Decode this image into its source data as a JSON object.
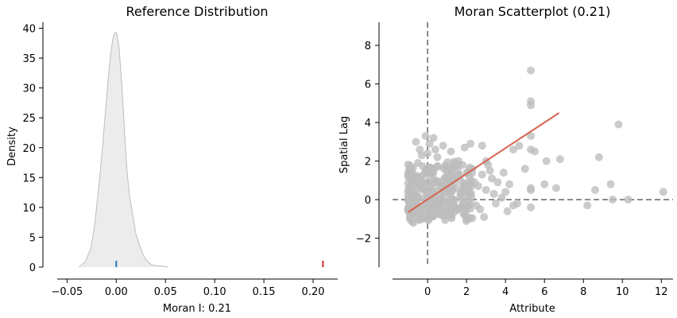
{
  "chart_data": [
    {
      "type": "area",
      "title": "Reference Distribution",
      "xlabel": "Moran I: 0.21",
      "ylabel": "Density",
      "xlim": [
        -0.06,
        0.225
      ],
      "ylim": [
        0,
        41
      ],
      "xticks": [
        -0.05,
        0.0,
        0.05,
        0.1,
        0.15,
        0.2
      ],
      "xtick_labels": [
        "−0.05",
        "0.00",
        "0.05",
        "0.10",
        "0.15",
        "0.20"
      ],
      "yticks": [
        0,
        5,
        10,
        15,
        20,
        25,
        30,
        35,
        40
      ],
      "ytick_labels": [
        "0",
        "5",
        "10",
        "15",
        "20",
        "25",
        "30",
        "35",
        "40"
      ],
      "density": {
        "x": [
          -0.038,
          -0.032,
          -0.026,
          -0.022,
          -0.018,
          -0.014,
          -0.011,
          -0.008,
          -0.005,
          -0.003,
          -0.001,
          0.0,
          0.001,
          0.003,
          0.005,
          0.007,
          0.009,
          0.011,
          0.013,
          0.016,
          0.02,
          0.024,
          0.027,
          0.03,
          0.034,
          0.038,
          0.043,
          0.048,
          0.053
        ],
        "y": [
          0,
          0.8,
          3,
          7,
          13,
          20,
          26,
          32,
          36.5,
          38.6,
          39.3,
          39.2,
          38.8,
          36.5,
          32,
          27,
          21,
          16,
          12.5,
          9.5,
          5.5,
          3.5,
          2.2,
          1.3,
          0.6,
          0.3,
          0.2,
          0.15,
          0
        ],
        "fill_color": "#ececec",
        "line_color": "#bdbdbd"
      },
      "markers": [
        {
          "x": 0.0,
          "color": "#1f77b4"
        },
        {
          "x": 0.21,
          "color": "#d62728"
        }
      ]
    },
    {
      "type": "scatter",
      "title": "Moran Scatterplot (0.21)",
      "xlabel": "Attribute",
      "ylabel": "Spatial Lag",
      "xlim": [
        -1.8,
        12.6
      ],
      "ylim": [
        -3.5,
        9.2
      ],
      "xticks": [
        0,
        2,
        4,
        6,
        8,
        10,
        12
      ],
      "xtick_labels": [
        "0",
        "2",
        "4",
        "6",
        "8",
        "10",
        "12"
      ],
      "yticks": [
        -2,
        0,
        2,
        4,
        6,
        8
      ],
      "ytick_labels": [
        "−2",
        "0",
        "2",
        "4",
        "6",
        "8"
      ],
      "point_color": "#bdbdbd",
      "points": [
        [
          5.3,
          6.7
        ],
        [
          5.3,
          5.1
        ],
        [
          5.3,
          4.9
        ],
        [
          9.8,
          3.9
        ],
        [
          5.3,
          3.3
        ],
        [
          5.3,
          2.6
        ],
        [
          5.5,
          2.5
        ],
        [
          4.4,
          2.6
        ],
        [
          6.8,
          2.1
        ],
        [
          6.1,
          2.0
        ],
        [
          8.8,
          2.2
        ],
        [
          3.9,
          1.4
        ],
        [
          4.2,
          0.8
        ],
        [
          5.3,
          0.6
        ],
        [
          5.3,
          0.5
        ],
        [
          6.0,
          0.8
        ],
        [
          9.4,
          0.8
        ],
        [
          8.6,
          0.5
        ],
        [
          12.1,
          0.4
        ],
        [
          8.2,
          -0.3
        ],
        [
          9.5,
          0.0
        ],
        [
          10.3,
          0.0
        ],
        [
          5.3,
          -0.4
        ],
        [
          6.6,
          0.6
        ],
        [
          5.0,
          1.6
        ],
        [
          4.1,
          -0.6
        ],
        [
          4.6,
          -0.2
        ],
        [
          3.3,
          1.1
        ],
        [
          2.9,
          -0.9
        ],
        [
          2.0,
          -1.0
        ],
        [
          0.3,
          3.2
        ],
        [
          -0.1,
          3.3
        ],
        [
          0.1,
          2.9
        ],
        [
          0.4,
          2.6
        ],
        [
          0.8,
          2.8
        ],
        [
          1.2,
          2.5
        ],
        [
          1.6,
          2.0
        ],
        [
          2.2,
          2.9
        ],
        [
          2.8,
          2.8
        ],
        [
          -0.6,
          3.0
        ],
        [
          -0.4,
          2.6
        ],
        [
          -0.3,
          2.3
        ],
        [
          0.5,
          2.2
        ],
        [
          3.0,
          2.0
        ],
        [
          1.9,
          2.7
        ],
        [
          0.0,
          2.4
        ],
        [
          4.7,
          2.8
        ],
        [
          3.1,
          1.8
        ],
        [
          3.6,
          0.9
        ],
        [
          2.6,
          0.7
        ],
        [
          3.4,
          0.3
        ],
        [
          2.3,
          1.6
        ],
        [
          1.6,
          1.3
        ],
        [
          1.0,
          1.5
        ],
        [
          -0.9,
          -0.9
        ],
        [
          -0.7,
          -0.7
        ],
        [
          -0.5,
          -0.3
        ],
        [
          0.2,
          -0.5
        ],
        [
          0.6,
          -0.2
        ],
        [
          1.1,
          0.3
        ],
        [
          1.3,
          -0.3
        ],
        [
          0.4,
          1.0
        ],
        [
          -0.2,
          1.3
        ],
        [
          -0.8,
          0.4
        ],
        [
          0.7,
          0.7
        ],
        [
          1.5,
          0.6
        ],
        [
          1.8,
          -0.4
        ],
        [
          2.1,
          0.2
        ],
        [
          2.5,
          -0.3
        ],
        [
          3.0,
          0.5
        ],
        [
          3.8,
          0.1
        ],
        [
          4.4,
          -0.3
        ],
        [
          1.4,
          1.9
        ],
        [
          0.9,
          1.1
        ],
        [
          -0.5,
          1.9
        ],
        [
          -0.3,
          0.9
        ],
        [
          0.0,
          0.1
        ],
        [
          0.3,
          -0.8
        ],
        [
          -0.6,
          0.1
        ],
        [
          2.8,
          1.3
        ],
        [
          2.4,
          0.9
        ],
        [
          1.7,
          0.2
        ],
        [
          0.5,
          1.7
        ],
        [
          -0.1,
          -0.2
        ],
        [
          1.9,
          0.8
        ],
        [
          3.5,
          -0.2
        ],
        [
          3.2,
          1.5
        ],
        [
          0.8,
          0.3
        ],
        [
          -0.4,
          -0.6
        ],
        [
          1.2,
          0.9
        ],
        [
          2.0,
          1.4
        ],
        [
          0.1,
          0.7
        ],
        [
          -0.7,
          1.2
        ],
        [
          0.6,
          -0.5
        ],
        [
          4.0,
          0.4
        ],
        [
          2.7,
          -0.5
        ],
        [
          1.0,
          -0.7
        ],
        [
          -0.2,
          0.5
        ],
        [
          0.2,
          1.4
        ],
        [
          1.3,
          1.2
        ]
      ],
      "regression": {
        "x": [
          -1.0,
          6.75
        ],
        "y": [
          -0.65,
          4.5
        ],
        "color": "#d7634d"
      },
      "ref_lines": {
        "x": 0,
        "y": 0,
        "color": "#666666",
        "style": "dashed"
      }
    }
  ]
}
